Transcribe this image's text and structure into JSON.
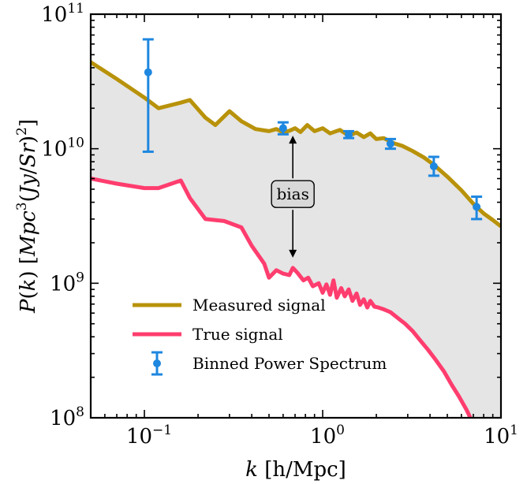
{
  "chart_data": {
    "type": "line",
    "xlabel": "k [h/Mpc]",
    "ylabel": "P(k) [Mpc^3(Jy/Sr)^2]",
    "xscale": "log",
    "yscale": "log",
    "xlim": [
      0.05,
      10
    ],
    "ylim": [
      100000000.0,
      100000000000.0
    ],
    "x_ticks": [
      {
        "value": 0.1,
        "base": "10",
        "exp": "−1"
      },
      {
        "value": 1,
        "base": "10",
        "exp": "0"
      },
      {
        "value": 10,
        "base": "10",
        "exp": "1"
      }
    ],
    "y_ticks": [
      {
        "value": 100000000.0,
        "base": "10",
        "exp": "8"
      },
      {
        "value": 1000000000.0,
        "base": "10",
        "exp": "9"
      },
      {
        "value": 10000000000.0,
        "base": "10",
        "exp": "10"
      },
      {
        "value": 100000000000.0,
        "base": "10",
        "exp": "11"
      }
    ],
    "fill_between": {
      "color": "#e5e5e5",
      "between": [
        "Measured signal",
        "True signal"
      ]
    },
    "series": [
      {
        "name": "Measured signal",
        "kind": "line",
        "color": "#b8920a",
        "points": [
          [
            0.05,
            44000000000.0
          ],
          [
            0.07,
            33000000000.0
          ],
          [
            0.1,
            24000000000.0
          ],
          [
            0.12,
            20000000000.0
          ],
          [
            0.16,
            22000000000.0
          ],
          [
            0.18,
            23000000000.0
          ],
          [
            0.22,
            17000000000.0
          ],
          [
            0.25,
            15000000000.0
          ],
          [
            0.3,
            19000000000.0
          ],
          [
            0.35,
            16000000000.0
          ],
          [
            0.42,
            14000000000.0
          ],
          [
            0.5,
            13500000000.0
          ],
          [
            0.55,
            14000000000.0
          ],
          [
            0.6,
            13200000000.0
          ],
          [
            0.65,
            13600000000.0
          ],
          [
            0.7,
            14200000000.0
          ],
          [
            0.75,
            13300000000.0
          ],
          [
            0.82,
            15000000000.0
          ],
          [
            0.9,
            13500000000.0
          ],
          [
            1.0,
            14200000000.0
          ],
          [
            1.1,
            13000000000.0
          ],
          [
            1.25,
            13800000000.0
          ],
          [
            1.4,
            12500000000.0
          ],
          [
            1.55,
            13200000000.0
          ],
          [
            1.7,
            12200000000.0
          ],
          [
            1.85,
            13000000000.0
          ],
          [
            2.0,
            11800000000.0
          ],
          [
            2.2,
            12000000000.0
          ],
          [
            2.5,
            11000000000.0
          ],
          [
            2.8,
            10500000000.0
          ],
          [
            3.2,
            9600000000.0
          ],
          [
            3.7,
            8600000000.0
          ],
          [
            4.2,
            7600000000.0
          ],
          [
            5.0,
            6200000000.0
          ],
          [
            6.0,
            4900000000.0
          ],
          [
            7.0,
            3900000000.0
          ],
          [
            8.0,
            3300000000.0
          ],
          [
            9.0,
            2950000000.0
          ],
          [
            10.0,
            2650000000.0
          ]
        ]
      },
      {
        "name": "True signal",
        "kind": "line",
        "color": "#ff3d6e",
        "points": [
          [
            0.05,
            6000000000.0
          ],
          [
            0.07,
            5500000000.0
          ],
          [
            0.1,
            5100000000.0
          ],
          [
            0.12,
            5100000000.0
          ],
          [
            0.16,
            5800000000.0
          ],
          [
            0.18,
            4300000000.0
          ],
          [
            0.22,
            3000000000.0
          ],
          [
            0.28,
            2900000000.0
          ],
          [
            0.35,
            2600000000.0
          ],
          [
            0.4,
            1900000000.0
          ],
          [
            0.47,
            1400000000.0
          ],
          [
            0.5,
            1100000000.0
          ],
          [
            0.55,
            1250000000.0
          ],
          [
            0.6,
            1180000000.0
          ],
          [
            0.65,
            1150000000.0
          ],
          [
            0.68,
            1300000000.0
          ],
          [
            0.72,
            1200000000.0
          ],
          [
            0.78,
            1050000000.0
          ],
          [
            0.83,
            1100000000.0
          ],
          [
            0.88,
            950000000.0
          ],
          [
            0.95,
            1000000000.0
          ],
          [
            1.0,
            850000000.0
          ],
          [
            1.05,
            980000000.0
          ],
          [
            1.1,
            820000000.0
          ],
          [
            1.15,
            1050000000.0
          ],
          [
            1.2,
            780000000.0
          ],
          [
            1.27,
            920000000.0
          ],
          [
            1.33,
            800000000.0
          ],
          [
            1.4,
            900000000.0
          ],
          [
            1.47,
            740000000.0
          ],
          [
            1.55,
            840000000.0
          ],
          [
            1.62,
            690000000.0
          ],
          [
            1.7,
            760000000.0
          ],
          [
            1.78,
            660000000.0
          ],
          [
            1.85,
            740000000.0
          ],
          [
            1.95,
            670000000.0
          ],
          [
            2.05,
            660000000.0
          ],
          [
            2.2,
            640000000.0
          ],
          [
            2.4,
            610000000.0
          ],
          [
            2.6,
            560000000.0
          ],
          [
            2.9,
            500000000.0
          ],
          [
            3.2,
            440000000.0
          ],
          [
            3.5,
            380000000.0
          ],
          [
            3.9,
            320000000.0
          ],
          [
            4.3,
            270000000.0
          ],
          [
            4.8,
            220000000.0
          ],
          [
            5.3,
            175000000.0
          ],
          [
            5.8,
            145000000.0
          ],
          [
            6.4,
            115000000.0
          ],
          [
            7.0,
            90000000.0
          ]
        ]
      },
      {
        "name": "Binned Power Spectrum",
        "kind": "errorbar",
        "color": "#1e87e0",
        "points": [
          {
            "x": 0.105,
            "y": 37000000000.0,
            "lo": 9500000000.0,
            "hi": 65000000000.0
          },
          {
            "x": 0.6,
            "y": 14200000000.0,
            "lo": 12800000000.0,
            "hi": 15700000000.0
          },
          {
            "x": 1.4,
            "y": 12700000000.0,
            "lo": 12000000000.0,
            "hi": 13500000000.0
          },
          {
            "x": 2.4,
            "y": 10900000000.0,
            "lo": 10000000000.0,
            "hi": 11800000000.0
          },
          {
            "x": 4.2,
            "y": 7400000000.0,
            "lo": 6300000000.0,
            "hi": 8700000000.0
          },
          {
            "x": 7.3,
            "y": 3700000000.0,
            "lo": 3000000000.0,
            "hi": 4400000000.0
          }
        ]
      }
    ],
    "annotation": {
      "text": "bias",
      "x": 0.68,
      "y_top": 12500000000.0,
      "y_bottom": 1550000000.0,
      "label_y": 4600000000.0
    }
  }
}
